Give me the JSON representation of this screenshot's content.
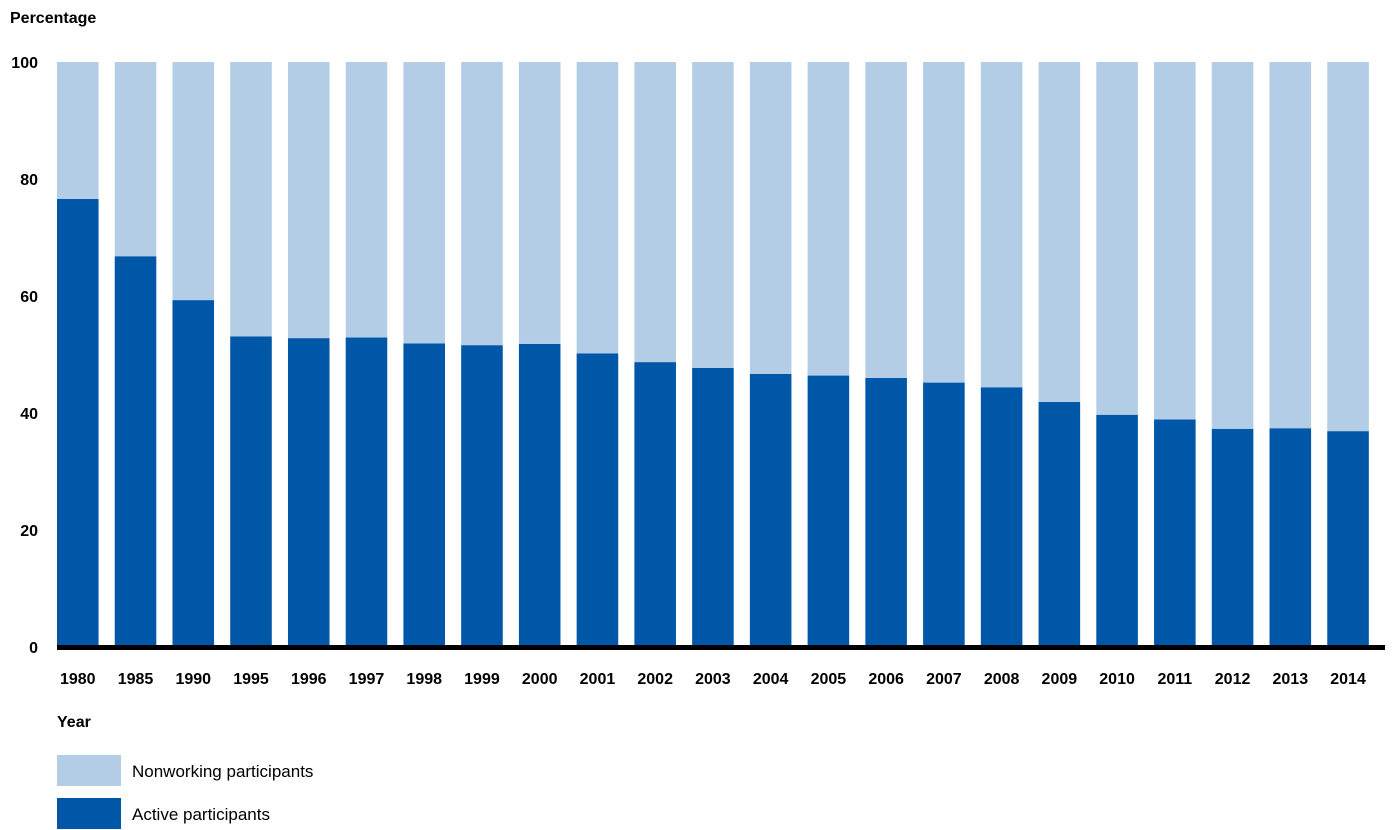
{
  "chart_data": {
    "type": "bar",
    "stacked": true,
    "title": "",
    "ylabel": "Percentage",
    "xlabel": "Year",
    "ylim": [
      0,
      100
    ],
    "yticks": [
      0,
      20,
      40,
      60,
      80,
      100
    ],
    "grid": false,
    "legend_placement": "bottom-left",
    "categories": [
      "1980",
      "1985",
      "1990",
      "1995",
      "1996",
      "1997",
      "1998",
      "1999",
      "2000",
      "2001",
      "2002",
      "2003",
      "2004",
      "2005",
      "2006",
      "2007",
      "2008",
      "2009",
      "2010",
      "2011",
      "2012",
      "2013",
      "2014"
    ],
    "series": [
      {
        "name": "Active participants",
        "color": "#0057a8",
        "values": [
          76.6,
          66.8,
          59.3,
          53.1,
          52.8,
          52.9,
          51.9,
          51.6,
          51.8,
          50.2,
          48.7,
          47.7,
          46.7,
          46.4,
          46.0,
          45.2,
          44.4,
          41.9,
          39.7,
          38.9,
          37.3,
          37.4,
          36.9
        ]
      },
      {
        "name": "Nonworking participants",
        "color": "#b4cde6",
        "values": [
          23.4,
          33.2,
          40.7,
          46.9,
          47.2,
          47.1,
          48.1,
          48.4,
          48.2,
          49.8,
          51.3,
          52.3,
          53.3,
          53.6,
          54.0,
          54.8,
          55.6,
          58.1,
          60.3,
          61.1,
          62.7,
          62.6,
          63.1
        ]
      }
    ],
    "legend_order": [
      "Nonworking participants",
      "Active participants"
    ]
  }
}
